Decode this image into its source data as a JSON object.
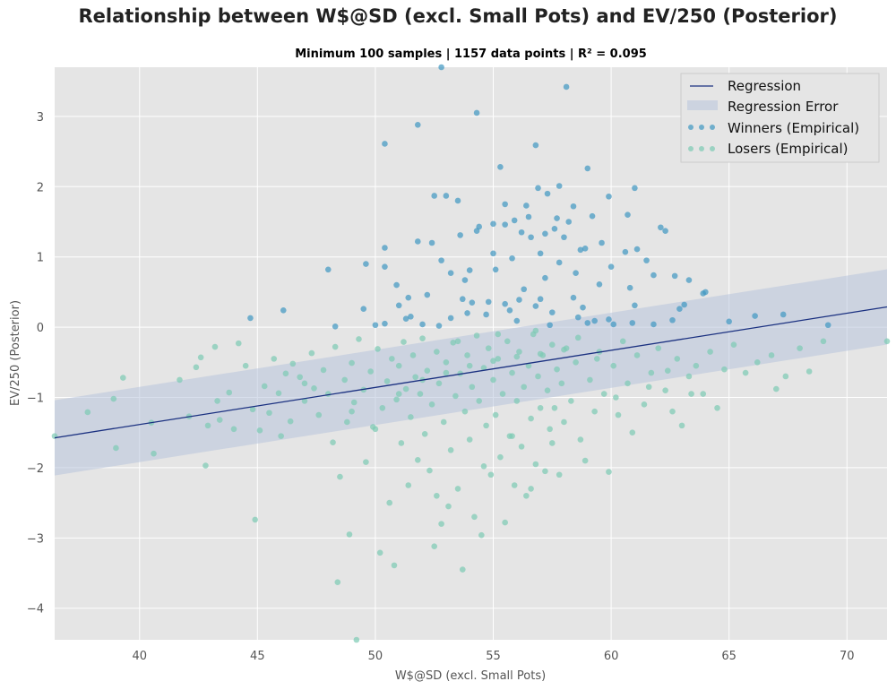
{
  "chart_data": {
    "type": "scatter",
    "title": "Relationship between W$@SD (excl. Small Pots) and EV/250 (Posterior)",
    "subtitle": "Minimum 100 samples | 1157 data points | R² = 0.095",
    "xlabel": "W$@SD (excl. Small Pots)",
    "ylabel": "EV/250 (Posterior)",
    "xlim": [
      36.4,
      71.7
    ],
    "ylim": [
      -4.45,
      3.7
    ],
    "x_ticks": [
      40,
      45,
      50,
      55,
      60,
      65,
      70
    ],
    "y_ticks": [
      -4,
      -3,
      -2,
      -1,
      0,
      1,
      2,
      3
    ],
    "grid": true,
    "legend_position": "top-right",
    "regression": {
      "name": "Regression",
      "color": "#1a3080",
      "intercept": -3.4975,
      "slope": 0.0528
    },
    "regression_error": {
      "name": "Regression Error",
      "half_width": 0.535,
      "color": "#b8c4dc"
    },
    "series": [
      {
        "name": "Winners (Empirical)",
        "color": "#3f97c2",
        "points": [
          [
            52.8,
            3.7
          ],
          [
            58.1,
            3.42
          ],
          [
            54.3,
            3.05
          ],
          [
            51.8,
            2.88
          ],
          [
            50.4,
            2.61
          ],
          [
            56.8,
            2.59
          ],
          [
            55.3,
            2.28
          ],
          [
            59.0,
            2.26
          ],
          [
            57.8,
            2.01
          ],
          [
            56.9,
            1.98
          ],
          [
            61.0,
            1.98
          ],
          [
            52.5,
            1.87
          ],
          [
            53.0,
            1.87
          ],
          [
            53.5,
            1.8
          ],
          [
            57.3,
            1.9
          ],
          [
            59.9,
            1.86
          ],
          [
            55.5,
            1.75
          ],
          [
            56.4,
            1.73
          ],
          [
            58.4,
            1.72
          ],
          [
            59.2,
            1.58
          ],
          [
            56.5,
            1.57
          ],
          [
            57.7,
            1.55
          ],
          [
            58.2,
            1.5
          ],
          [
            55.9,
            1.52
          ],
          [
            52.4,
            1.2
          ],
          [
            51.8,
            1.22
          ],
          [
            50.4,
            1.13
          ],
          [
            56.2,
            1.35
          ],
          [
            57.6,
            1.4
          ],
          [
            54.4,
            1.43
          ],
          [
            55.0,
            1.47
          ],
          [
            55.5,
            1.46
          ],
          [
            56.6,
            1.28
          ],
          [
            57.2,
            1.33
          ],
          [
            58.7,
            1.1
          ],
          [
            59.6,
            1.2
          ],
          [
            60.6,
            1.07
          ],
          [
            61.1,
            1.11
          ],
          [
            62.1,
            1.42
          ],
          [
            62.3,
            1.37
          ],
          [
            53.6,
            1.31
          ],
          [
            54.3,
            1.37
          ],
          [
            49.6,
            0.9
          ],
          [
            50.4,
            0.86
          ],
          [
            48.0,
            0.82
          ],
          [
            52.8,
            0.95
          ],
          [
            53.2,
            0.77
          ],
          [
            54.0,
            0.81
          ],
          [
            55.1,
            0.82
          ],
          [
            55.8,
            0.98
          ],
          [
            57.0,
            1.05
          ],
          [
            57.8,
            0.92
          ],
          [
            58.5,
            0.77
          ],
          [
            60.0,
            0.86
          ],
          [
            60.8,
            0.56
          ],
          [
            61.8,
            0.74
          ],
          [
            62.7,
            0.73
          ],
          [
            63.3,
            0.67
          ],
          [
            59.5,
            0.61
          ],
          [
            56.3,
            0.54
          ],
          [
            50.9,
            0.6
          ],
          [
            51.4,
            0.42
          ],
          [
            52.2,
            0.46
          ],
          [
            53.8,
            0.67
          ],
          [
            54.8,
            0.36
          ],
          [
            57.0,
            0.4
          ],
          [
            58.4,
            0.42
          ],
          [
            59.9,
            0.11
          ],
          [
            61.0,
            0.31
          ],
          [
            62.9,
            0.26
          ],
          [
            63.9,
            0.48
          ],
          [
            49.5,
            0.26
          ],
          [
            50.4,
            0.05
          ],
          [
            51.3,
            0.12
          ],
          [
            52.7,
            0.02
          ],
          [
            53.9,
            0.2
          ],
          [
            55.5,
            0.33
          ],
          [
            56.0,
            0.09
          ],
          [
            58.6,
            0.14
          ],
          [
            60.9,
            0.06
          ],
          [
            61.8,
            0.04
          ],
          [
            62.6,
            0.1
          ],
          [
            46.1,
            0.24
          ],
          [
            44.7,
            0.13
          ],
          [
            48.3,
            0.01
          ],
          [
            50.0,
            0.03
          ],
          [
            51.5,
            0.15
          ],
          [
            53.2,
            0.13
          ],
          [
            55.7,
            0.24
          ],
          [
            57.5,
            0.21
          ],
          [
            59.3,
            0.09
          ],
          [
            60.1,
            0.04
          ],
          [
            54.7,
            0.18
          ],
          [
            56.8,
            0.3
          ],
          [
            58.8,
            0.28
          ],
          [
            52.0,
            0.04
          ],
          [
            54.1,
            0.35
          ],
          [
            56.1,
            0.39
          ],
          [
            57.4,
            0.03
          ],
          [
            59.0,
            0.06
          ],
          [
            65.0,
            0.08
          ],
          [
            66.1,
            0.16
          ],
          [
            67.3,
            0.18
          ],
          [
            69.2,
            0.03
          ],
          [
            64.0,
            0.5
          ],
          [
            60.7,
            1.6
          ],
          [
            61.5,
            0.95
          ],
          [
            58.0,
            1.28
          ],
          [
            55.0,
            1.05
          ],
          [
            53.7,
            0.4
          ],
          [
            51.0,
            0.31
          ],
          [
            63.1,
            0.32
          ],
          [
            57.2,
            0.7
          ],
          [
            58.9,
            1.12
          ]
        ]
      },
      {
        "name": "Losers (Empirical)",
        "color": "#7ccbb4",
        "points": [
          [
            36.4,
            -1.55
          ],
          [
            37.8,
            -1.21
          ],
          [
            38.9,
            -1.02
          ],
          [
            39.3,
            -0.72
          ],
          [
            39.0,
            -1.72
          ],
          [
            40.5,
            -1.36
          ],
          [
            40.6,
            -1.8
          ],
          [
            41.7,
            -0.75
          ],
          [
            42.1,
            -1.27
          ],
          [
            42.4,
            -0.57
          ],
          [
            42.6,
            -0.43
          ],
          [
            42.8,
            -1.97
          ],
          [
            42.9,
            -1.4
          ],
          [
            43.2,
            -0.28
          ],
          [
            43.3,
            -1.05
          ],
          [
            43.4,
            -1.32
          ],
          [
            43.8,
            -0.93
          ],
          [
            44.2,
            -0.23
          ],
          [
            44.5,
            -0.55
          ],
          [
            44.8,
            -1.17
          ],
          [
            44.9,
            -2.74
          ],
          [
            45.1,
            -1.47
          ],
          [
            45.3,
            -0.84
          ],
          [
            45.5,
            -1.22
          ],
          [
            45.7,
            -0.45
          ],
          [
            45.9,
            -0.94
          ],
          [
            46.2,
            -0.66
          ],
          [
            46.4,
            -1.34
          ],
          [
            46.5,
            -0.52
          ],
          [
            46.8,
            -0.71
          ],
          [
            47.0,
            -1.05
          ],
          [
            47.3,
            -0.37
          ],
          [
            47.4,
            -0.87
          ],
          [
            47.6,
            -1.25
          ],
          [
            47.8,
            -0.61
          ],
          [
            48.0,
            -0.95
          ],
          [
            48.2,
            -1.64
          ],
          [
            48.3,
            -0.28
          ],
          [
            48.4,
            -3.63
          ],
          [
            48.5,
            -2.13
          ],
          [
            48.7,
            -0.75
          ],
          [
            48.8,
            -1.35
          ],
          [
            49.0,
            -0.51
          ],
          [
            49.1,
            -1.07
          ],
          [
            49.2,
            -4.45
          ],
          [
            49.3,
            -0.17
          ],
          [
            49.5,
            -0.89
          ],
          [
            49.6,
            -1.92
          ],
          [
            49.8,
            -0.63
          ],
          [
            49.9,
            -1.42
          ],
          [
            50.1,
            -0.31
          ],
          [
            50.2,
            -3.21
          ],
          [
            50.3,
            -1.15
          ],
          [
            50.5,
            -0.77
          ],
          [
            50.6,
            -2.5
          ],
          [
            50.7,
            -0.45
          ],
          [
            50.8,
            -3.39
          ],
          [
            50.9,
            -1.03
          ],
          [
            51.0,
            -0.55
          ],
          [
            51.1,
            -1.65
          ],
          [
            51.2,
            -0.21
          ],
          [
            51.3,
            -0.88
          ],
          [
            51.4,
            -2.25
          ],
          [
            51.5,
            -1.28
          ],
          [
            51.6,
            -0.4
          ],
          [
            51.7,
            -0.71
          ],
          [
            51.8,
            -1.89
          ],
          [
            51.9,
            -0.95
          ],
          [
            52.0,
            -0.16
          ],
          [
            52.1,
            -1.52
          ],
          [
            52.2,
            -0.62
          ],
          [
            52.3,
            -2.04
          ],
          [
            52.4,
            -1.1
          ],
          [
            52.5,
            -3.12
          ],
          [
            52.6,
            -0.35
          ],
          [
            52.7,
            -0.8
          ],
          [
            52.8,
            -2.8
          ],
          [
            52.9,
            -1.35
          ],
          [
            53.0,
            -0.5
          ],
          [
            53.1,
            -2.55
          ],
          [
            53.2,
            -1.75
          ],
          [
            53.3,
            -0.22
          ],
          [
            53.4,
            -0.98
          ],
          [
            53.5,
            -2.3
          ],
          [
            53.6,
            -0.66
          ],
          [
            53.7,
            -3.45
          ],
          [
            53.8,
            -1.2
          ],
          [
            53.9,
            -0.4
          ],
          [
            54.0,
            -1.6
          ],
          [
            54.1,
            -0.85
          ],
          [
            54.2,
            -2.7
          ],
          [
            54.3,
            -0.12
          ],
          [
            54.4,
            -1.05
          ],
          [
            54.5,
            -2.96
          ],
          [
            54.6,
            -0.58
          ],
          [
            54.7,
            -1.4
          ],
          [
            54.8,
            -0.3
          ],
          [
            54.9,
            -2.1
          ],
          [
            55.0,
            -0.75
          ],
          [
            55.1,
            -1.25
          ],
          [
            55.2,
            -0.45
          ],
          [
            55.3,
            -1.85
          ],
          [
            55.4,
            -0.95
          ],
          [
            55.5,
            -2.78
          ],
          [
            55.6,
            -0.2
          ],
          [
            55.7,
            -1.55
          ],
          [
            55.8,
            -0.65
          ],
          [
            55.9,
            -2.25
          ],
          [
            56.0,
            -1.05
          ],
          [
            56.1,
            -0.35
          ],
          [
            56.2,
            -1.7
          ],
          [
            56.3,
            -0.85
          ],
          [
            56.4,
            -2.4
          ],
          [
            56.5,
            -0.55
          ],
          [
            56.6,
            -1.3
          ],
          [
            56.7,
            -0.1
          ],
          [
            56.8,
            -1.95
          ],
          [
            56.9,
            -0.7
          ],
          [
            57.0,
            -1.15
          ],
          [
            57.1,
            -0.4
          ],
          [
            57.2,
            -2.05
          ],
          [
            57.3,
            -0.9
          ],
          [
            57.4,
            -1.45
          ],
          [
            57.5,
            -0.25
          ],
          [
            57.6,
            -1.15
          ],
          [
            57.7,
            -0.6
          ],
          [
            57.8,
            -2.1
          ],
          [
            57.9,
            -0.8
          ],
          [
            58.0,
            -1.35
          ],
          [
            58.1,
            -0.3
          ],
          [
            58.3,
            -1.05
          ],
          [
            58.5,
            -0.5
          ],
          [
            58.7,
            -1.6
          ],
          [
            58.9,
            -1.9
          ],
          [
            59.1,
            -0.75
          ],
          [
            59.3,
            -1.2
          ],
          [
            59.5,
            -0.35
          ],
          [
            59.7,
            -0.95
          ],
          [
            59.9,
            -2.06
          ],
          [
            60.1,
            -0.55
          ],
          [
            60.3,
            -1.25
          ],
          [
            60.5,
            -0.2
          ],
          [
            60.7,
            -0.8
          ],
          [
            60.9,
            -1.5
          ],
          [
            61.1,
            -0.4
          ],
          [
            61.4,
            -1.1
          ],
          [
            61.7,
            -0.65
          ],
          [
            62.0,
            -0.3
          ],
          [
            62.3,
            -0.9
          ],
          [
            62.6,
            -1.2
          ],
          [
            62.8,
            -0.45
          ],
          [
            63.0,
            -1.4
          ],
          [
            63.3,
            -0.7
          ],
          [
            63.6,
            -0.55
          ],
          [
            63.9,
            -0.95
          ],
          [
            64.2,
            -0.35
          ],
          [
            64.5,
            -1.15
          ],
          [
            64.8,
            -0.6
          ],
          [
            65.2,
            -0.25
          ],
          [
            65.7,
            -0.65
          ],
          [
            66.2,
            -0.5
          ],
          [
            66.8,
            -0.4
          ],
          [
            67.0,
            -0.88
          ],
          [
            67.4,
            -0.7
          ],
          [
            68.0,
            -0.3
          ],
          [
            68.4,
            -0.63
          ],
          [
            69.0,
            -0.2
          ],
          [
            71.7,
            -0.2
          ],
          [
            50.0,
            -1.45
          ],
          [
            51.0,
            -0.95
          ],
          [
            52.0,
            -0.75
          ],
          [
            53.0,
            -0.65
          ],
          [
            54.0,
            -0.55
          ],
          [
            55.0,
            -0.48
          ],
          [
            56.0,
            -0.42
          ],
          [
            57.0,
            -0.38
          ],
          [
            58.0,
            -0.32
          ],
          [
            53.5,
            -0.2
          ],
          [
            55.2,
            -0.1
          ],
          [
            56.8,
            -0.05
          ],
          [
            58.6,
            -0.15
          ],
          [
            49.0,
            -1.2
          ],
          [
            47.0,
            -0.8
          ],
          [
            46.0,
            -1.55
          ],
          [
            44.0,
            -1.45
          ],
          [
            48.9,
            -2.95
          ],
          [
            52.6,
            -2.4
          ],
          [
            54.6,
            -1.98
          ],
          [
            56.6,
            -2.3
          ],
          [
            55.8,
            -1.55
          ],
          [
            57.5,
            -1.65
          ],
          [
            59.4,
            -0.45
          ],
          [
            60.2,
            -1.0
          ],
          [
            61.6,
            -0.85
          ],
          [
            62.4,
            -0.62
          ],
          [
            63.4,
            -0.95
          ]
        ]
      }
    ]
  }
}
